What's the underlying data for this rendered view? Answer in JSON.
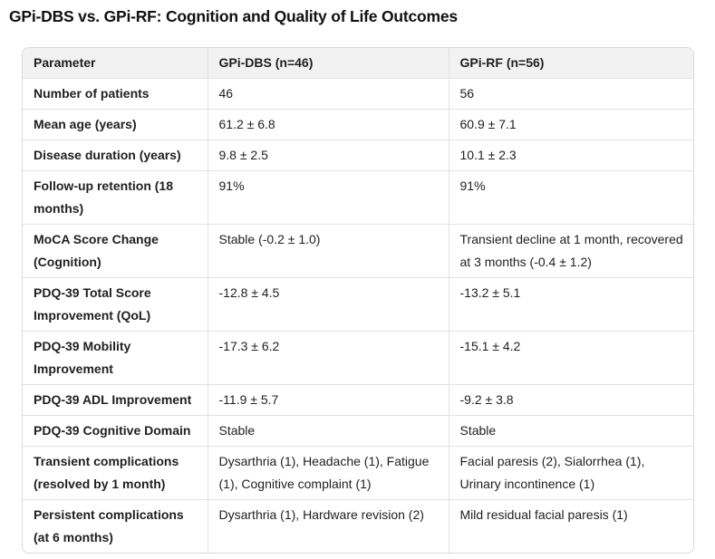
{
  "page": {
    "title": "GPi-DBS vs. GPi-RF: Cognition and Quality of Life Outcomes"
  },
  "theme": {
    "header_bg": "#f2f2f2",
    "border": "#e2e2e2",
    "outer_border": "#d9d9d9",
    "text": "#1f1f1f"
  },
  "table": {
    "columns": [
      "Parameter",
      "GPi-DBS (n=46)",
      "GPi-RF (n=56)"
    ],
    "rows": [
      {
        "param": "Number of patients",
        "dbs": "46",
        "rf": "56"
      },
      {
        "param": "Mean age (years)",
        "dbs": "61.2 ± 6.8",
        "rf": "60.9 ± 7.1"
      },
      {
        "param": "Disease duration (years)",
        "dbs": "9.8 ± 2.5",
        "rf": "10.1 ± 2.3"
      },
      {
        "param": "Follow-up retention (18 months)",
        "dbs": "91%",
        "rf": "91%"
      },
      {
        "param": "MoCA Score Change (Cognition)",
        "dbs": "Stable (-0.2 ± 1.0)",
        "rf": "Transient decline at 1 month, recovered at 3 months (-0.4 ± 1.2)"
      },
      {
        "param": "PDQ-39 Total Score Improvement (QoL)",
        "dbs": "-12.8 ± 4.5",
        "rf": "-13.2 ± 5.1"
      },
      {
        "param": "PDQ-39 Mobility Improvement",
        "dbs": "-17.3 ± 6.2",
        "rf": "-15.1 ± 4.2"
      },
      {
        "param": "PDQ-39 ADL Improvement",
        "dbs": "-11.9 ± 5.7",
        "rf": "-9.2 ± 3.8"
      },
      {
        "param": "PDQ-39 Cognitive Domain",
        "dbs": "Stable",
        "rf": "Stable"
      },
      {
        "param": "Transient complications (resolved by 1 month)",
        "dbs": "Dysarthria (1), Headache (1), Fatigue (1), Cognitive complaint (1)",
        "rf": "Facial paresis (2), Sialorrhea (1), Urinary incontinence (1)"
      },
      {
        "param": "Persistent complications (at 6 months)",
        "dbs": "Dysarthria (1), Hardware revision (2)",
        "rf": "Mild residual facial paresis (1)"
      }
    ]
  }
}
